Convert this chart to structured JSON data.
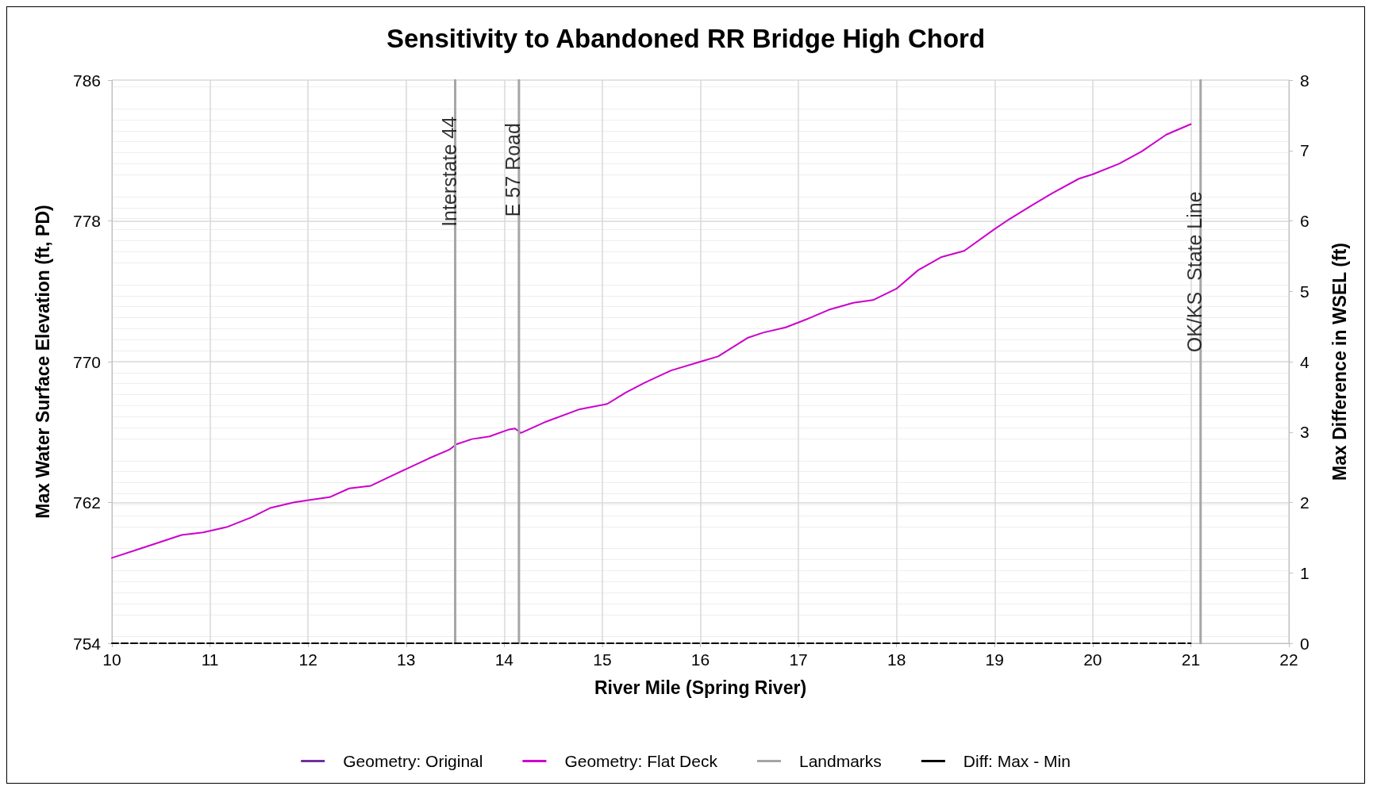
{
  "chart_data": {
    "type": "line",
    "title": "Sensitivity to Abandoned RR Bridge High Chord",
    "xlabel": "River Mile (Spring River)",
    "ylabel": "Max Water Surface Elevation (ft, PD)",
    "y2label": "Max Difference in WSEL (ft)",
    "x": [
      10.0,
      10.3,
      10.71,
      10.93,
      11.17,
      11.42,
      11.62,
      11.85,
      12.02,
      12.22,
      12.42,
      12.64,
      12.81,
      13.0,
      13.23,
      13.44,
      13.51,
      13.67,
      13.85,
      14.05,
      14.11,
      14.17,
      14.43,
      14.77,
      15.05,
      15.24,
      15.43,
      15.7,
      16.0,
      16.18,
      16.48,
      16.64,
      16.87,
      17.1,
      17.31,
      17.56,
      17.76,
      18.0,
      18.22,
      18.46,
      18.69,
      18.99,
      19.15,
      19.37,
      19.58,
      19.86,
      20.0,
      20.27,
      20.5,
      20.75,
      21.0
    ],
    "series": [
      {
        "name": "Geometry: Original",
        "color": "#7030a0",
        "values": [
          null,
          null,
          null,
          null,
          null,
          null,
          null,
          null,
          null,
          null,
          null,
          null,
          null,
          null,
          null,
          null,
          null,
          null,
          null,
          null,
          null,
          null,
          null,
          null,
          null,
          null,
          null,
          null,
          null,
          null,
          null,
          null,
          null,
          null,
          null,
          null,
          null,
          null,
          null,
          null,
          null,
          null,
          null,
          null,
          null,
          null,
          null,
          null,
          null,
          null,
          null
        ]
      },
      {
        "name": "Geometry: Flat Deck",
        "color": "#cc00cc",
        "values": [
          758.85,
          759.4,
          760.15,
          760.3,
          760.6,
          761.15,
          761.7,
          762.0,
          762.15,
          762.3,
          762.8,
          762.95,
          763.4,
          763.9,
          764.5,
          765.0,
          765.3,
          765.6,
          765.75,
          766.15,
          766.2,
          765.95,
          766.6,
          767.3,
          767.6,
          768.25,
          768.8,
          769.5,
          770.0,
          770.3,
          771.35,
          771.65,
          771.95,
          772.45,
          772.95,
          773.35,
          773.5,
          774.15,
          775.2,
          775.95,
          776.3,
          777.5,
          778.1,
          778.85,
          779.55,
          780.4,
          780.65,
          781.25,
          781.95,
          782.9,
          783.5
        ]
      },
      {
        "name": "Landmarks",
        "color": "#a6a6a6",
        "x": [
          13.5,
          13.5,
          null,
          14.15,
          14.15,
          null,
          21.1,
          21.1
        ],
        "values": [
          754,
          786,
          null,
          754,
          786,
          null,
          754,
          786
        ]
      },
      {
        "name": "Diff: Max - Min",
        "color": "#000000",
        "axis": "y2",
        "line_style": "dashed",
        "x": [
          10,
          21
        ],
        "values": [
          0,
          0
        ]
      }
    ],
    "annotations": [
      {
        "text": "Interstate 44",
        "x": 13.5,
        "y": 780.8
      },
      {
        "text": "E 57 Road",
        "x": 14.15,
        "y": 780.9
      },
      {
        "text": "OK/KS  State Line",
        "x": 21.1,
        "y": 775.1
      }
    ],
    "xlim": [
      10,
      22
    ],
    "xticks": [
      10,
      11,
      12,
      13,
      14,
      15,
      16,
      17,
      18,
      19,
      20,
      21,
      22
    ],
    "ylim": [
      754,
      786
    ],
    "yticks": [
      754,
      762,
      770,
      778,
      786
    ],
    "y2lim": [
      0,
      8
    ],
    "y2ticks": [
      0,
      1,
      2,
      3,
      4,
      5,
      6,
      7,
      8
    ],
    "grid": true,
    "legend": "bottom",
    "marker": "none",
    "line_style": "solid"
  }
}
